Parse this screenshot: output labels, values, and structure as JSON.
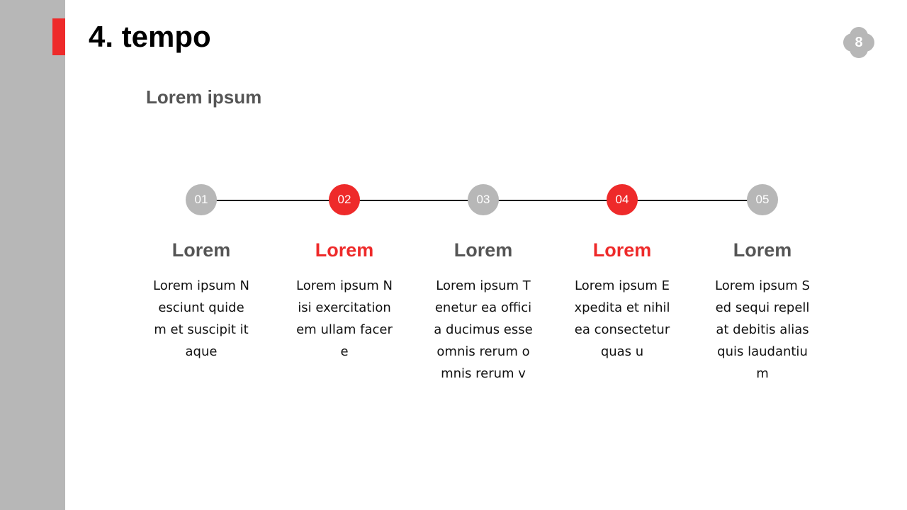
{
  "slide": {
    "title": "4. tempo",
    "subtitle": "Lorem ipsum",
    "page_number": "8",
    "colors": {
      "accent": "#ee2a2a",
      "gray": "#b7b7b7",
      "heading_gray": "#555555"
    }
  },
  "steps": [
    {
      "number": "01",
      "highlight": false,
      "heading": "Lorem",
      "lines": [
        "Lorem ipsum N",
        "esciunt quide",
        "m et suscipit it",
        "aque"
      ]
    },
    {
      "number": "02",
      "highlight": true,
      "heading": "Lorem",
      "lines": [
        "Lorem ipsum N",
        "isi exercitation",
        "em ullam facer",
        "e"
      ]
    },
    {
      "number": "03",
      "highlight": false,
      "heading": "Lorem",
      "lines": [
        "Lorem ipsum T",
        "enetur ea offici",
        "a ducimus esse",
        "omnis rerum o",
        "mnis rerum v"
      ]
    },
    {
      "number": "04",
      "highlight": true,
      "heading": "Lorem",
      "lines": [
        "Lorem ipsum E",
        "xpedita et nihil",
        "ea consectetur",
        "quas u"
      ]
    },
    {
      "number": "05",
      "highlight": false,
      "heading": "Lorem",
      "lines": [
        "Lorem ipsum S",
        "ed sequi repell",
        "at debitis alias",
        "quis laudantiu",
        "m"
      ]
    }
  ]
}
